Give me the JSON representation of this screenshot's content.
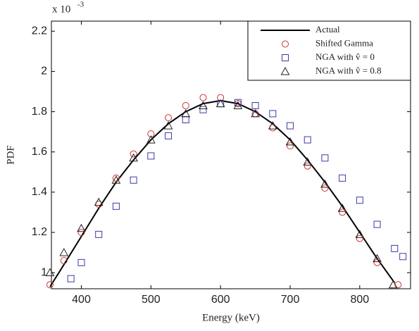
{
  "chart_data": {
    "type": "line",
    "x_label": "Energy (keV)",
    "y_label": "PDF",
    "axis_multiplier": {
      "base": "x 10",
      "exponent": "-3"
    },
    "xlim": [
      357,
      873
    ],
    "ylim": [
      0.92,
      2.25
    ],
    "xticks": [
      400,
      500,
      600,
      700,
      800
    ],
    "yticks": [
      1,
      1.2,
      1.4,
      1.6,
      1.8,
      2,
      2.2
    ],
    "legend": "upper right",
    "series": [
      {
        "name": "Actual",
        "color": "#000000",
        "style": "line",
        "x": [
          355,
          375,
          400,
          425,
          450,
          475,
          500,
          525,
          550,
          575,
          600,
          625,
          650,
          675,
          700,
          725,
          750,
          775,
          800,
          825,
          850
        ],
        "values": [
          0.93,
          1.04,
          1.18,
          1.32,
          1.45,
          1.56,
          1.66,
          1.74,
          1.8,
          1.84,
          1.855,
          1.84,
          1.8,
          1.74,
          1.66,
          1.56,
          1.45,
          1.33,
          1.2,
          1.07,
          0.95
        ]
      },
      {
        "name": "Shifted Gamma",
        "color": "#d03030",
        "style": "circle",
        "x": [
          355,
          375,
          400,
          425,
          450,
          475,
          500,
          525,
          550,
          575,
          600,
          625,
          650,
          675,
          700,
          725,
          750,
          775,
          800,
          825,
          855
        ],
        "values": [
          0.94,
          1.06,
          1.2,
          1.34,
          1.47,
          1.59,
          1.69,
          1.77,
          1.83,
          1.87,
          1.87,
          1.84,
          1.79,
          1.72,
          1.63,
          1.53,
          1.42,
          1.3,
          1.17,
          1.05,
          0.94
        ]
      },
      {
        "name": "NGA with v̂ = 0",
        "color": "#3a3aa8",
        "style": "square",
        "x": [
          385,
          400,
          425,
          450,
          475,
          500,
          525,
          550,
          575,
          600,
          625,
          650,
          675,
          700,
          725,
          750,
          775,
          800,
          825,
          850,
          862
        ],
        "values": [
          0.97,
          1.05,
          1.19,
          1.33,
          1.46,
          1.58,
          1.68,
          1.76,
          1.81,
          1.84,
          1.845,
          1.83,
          1.79,
          1.73,
          1.66,
          1.57,
          1.47,
          1.36,
          1.24,
          1.12,
          1.08
        ]
      },
      {
        "name": "NGA with v̂ = 0.8",
        "color": "#222222",
        "style": "triangle",
        "x": [
          355,
          375,
          400,
          425,
          450,
          475,
          500,
          525,
          550,
          575,
          600,
          625,
          650,
          675,
          700,
          725,
          750,
          775,
          800,
          825,
          848
        ],
        "values": [
          1.0,
          1.1,
          1.22,
          1.35,
          1.46,
          1.57,
          1.66,
          1.73,
          1.79,
          1.83,
          1.84,
          1.83,
          1.79,
          1.73,
          1.65,
          1.55,
          1.44,
          1.32,
          1.19,
          1.07,
          0.94
        ]
      }
    ]
  }
}
